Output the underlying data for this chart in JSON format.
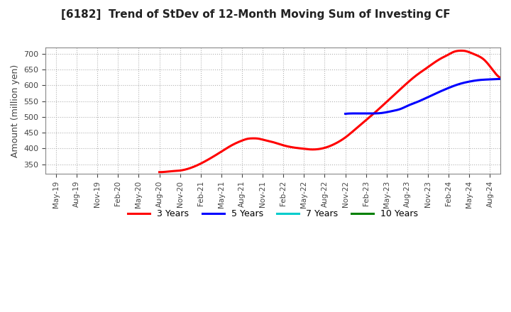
{
  "title": "[6182]  Trend of StDev of 12-Month Moving Sum of Investing CF",
  "ylabel": "Amount (million yen)",
  "background_color": "#ffffff",
  "grid_color": "#aaaaaa",
  "ylim": [
    320,
    720
  ],
  "yticks": [
    350,
    400,
    450,
    500,
    550,
    600,
    650,
    700
  ],
  "xtick_labels": [
    "May-19",
    "Aug-19",
    "Nov-19",
    "Feb-20",
    "May-20",
    "Aug-20",
    "Nov-20",
    "Feb-21",
    "May-21",
    "Aug-21",
    "Nov-21",
    "Feb-22",
    "May-22",
    "Aug-22",
    "Nov-22",
    "Feb-23",
    "May-23",
    "Aug-23",
    "Nov-23",
    "Feb-24",
    "May-24",
    "Aug-24"
  ],
  "series": {
    "3years": {
      "color": "#ff0000",
      "points": [
        [
          5,
          325
        ],
        [
          5.3,
          326
        ],
        [
          5.6,
          328
        ],
        [
          6,
          330
        ],
        [
          6.5,
          338
        ],
        [
          7,
          352
        ],
        [
          7.5,
          370
        ],
        [
          8,
          390
        ],
        [
          8.5,
          410
        ],
        [
          9,
          425
        ],
        [
          9.3,
          431
        ],
        [
          9.5,
          432
        ],
        [
          9.8,
          431
        ],
        [
          10,
          428
        ],
        [
          10.5,
          420
        ],
        [
          11,
          410
        ],
        [
          11.5,
          403
        ],
        [
          12,
          399
        ],
        [
          12.3,
          397
        ],
        [
          12.7,
          398
        ],
        [
          13,
          402
        ],
        [
          13.5,
          415
        ],
        [
          14,
          435
        ],
        [
          14.5,
          462
        ],
        [
          15,
          490
        ],
        [
          15.5,
          518
        ],
        [
          16,
          548
        ],
        [
          16.5,
          578
        ],
        [
          17,
          608
        ],
        [
          17.5,
          635
        ],
        [
          18,
          658
        ],
        [
          18.3,
          672
        ],
        [
          18.7,
          688
        ],
        [
          19,
          698
        ],
        [
          19.2,
          705
        ],
        [
          19.4,
          709
        ],
        [
          19.6,
          710
        ],
        [
          19.8,
          709
        ],
        [
          20,
          705
        ],
        [
          20.3,
          697
        ],
        [
          20.7,
          682
        ],
        [
          21,
          660
        ],
        [
          21.3,
          635
        ],
        [
          21.6,
          622
        ]
      ]
    },
    "5years": {
      "color": "#0000ff",
      "points": [
        [
          14,
          510
        ],
        [
          14.3,
          511
        ],
        [
          14.7,
          511
        ],
        [
          15,
          511
        ],
        [
          15.3,
          511
        ],
        [
          15.7,
          512
        ],
        [
          16,
          515
        ],
        [
          16.3,
          519
        ],
        [
          16.7,
          526
        ],
        [
          17,
          535
        ],
        [
          17.5,
          548
        ],
        [
          18,
          563
        ],
        [
          18.5,
          578
        ],
        [
          19,
          592
        ],
        [
          19.5,
          604
        ],
        [
          20,
          612
        ],
        [
          20.5,
          617
        ],
        [
          21,
          619
        ],
        [
          21.3,
          620
        ],
        [
          21.6,
          620
        ]
      ]
    },
    "7years": {
      "color": "#00cccc",
      "points": []
    },
    "10years": {
      "color": "#008000",
      "points": []
    }
  },
  "legend": [
    {
      "label": "3 Years",
      "color": "#ff0000"
    },
    {
      "label": "5 Years",
      "color": "#0000ff"
    },
    {
      "label": "7 Years",
      "color": "#00cccc"
    },
    {
      "label": "10 Years",
      "color": "#008000"
    }
  ]
}
